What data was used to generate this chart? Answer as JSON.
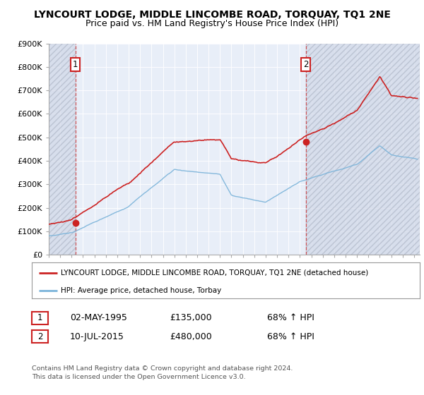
{
  "title": "LYNCOURT LODGE, MIDDLE LINCOMBE ROAD, TORQUAY, TQ1 2NE",
  "subtitle": "Price paid vs. HM Land Registry's House Price Index (HPI)",
  "ylabel_ticks": [
    "£0",
    "£100K",
    "£200K",
    "£300K",
    "£400K",
    "£500K",
    "£600K",
    "£700K",
    "£800K",
    "£900K"
  ],
  "ytick_values": [
    0,
    100000,
    200000,
    300000,
    400000,
    500000,
    600000,
    700000,
    800000,
    900000
  ],
  "ylim": [
    0,
    900000
  ],
  "sale1_year": 1995.33,
  "sale1_price": 135000,
  "sale1_label": "1",
  "sale1_date": "02-MAY-1995",
  "sale2_year": 2015.52,
  "sale2_price": 480000,
  "sale2_label": "2",
  "sale2_date": "10-JUL-2015",
  "hpi_color": "#7ab3d9",
  "price_color": "#cc2222",
  "legend_line1": "LYNCOURT LODGE, MIDDLE LINCOMBE ROAD, TORQUAY, TQ1 2NE (detached house)",
  "legend_line2": "HPI: Average price, detached house, Torbay",
  "table_row1": [
    "1",
    "02-MAY-1995",
    "£135,000",
    "68% ↑ HPI"
  ],
  "table_row2": [
    "2",
    "10-JUL-2015",
    "£480,000",
    "68% ↑ HPI"
  ],
  "footer": "Contains HM Land Registry data © Crown copyright and database right 2024.\nThis data is licensed under the Open Government Licence v3.0.",
  "background_color": "#ffffff",
  "plot_bg_color": "#e8eef8",
  "xlim_left": 1993,
  "xlim_right": 2025.5,
  "title_fontsize": 10,
  "subtitle_fontsize": 9
}
